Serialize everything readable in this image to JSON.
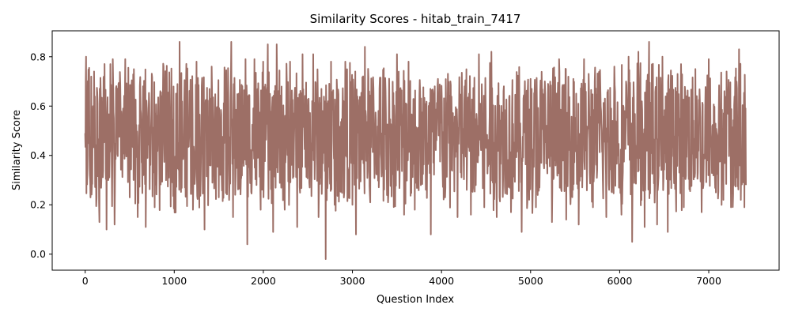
{
  "chart_data": {
    "type": "line",
    "title": "Similarity Scores - hitab_train_7417",
    "xlabel": "Question Index",
    "ylabel": "Similarity Score",
    "xlim": [
      -370,
      7790
    ],
    "ylim": [
      -0.065,
      0.905
    ],
    "xticks": [
      0,
      1000,
      2000,
      3000,
      4000,
      5000,
      6000,
      7000
    ],
    "yticks": [
      0.0,
      0.2,
      0.4,
      0.6,
      0.8
    ],
    "xtick_labels": [
      "0",
      "1000",
      "2000",
      "3000",
      "4000",
      "5000",
      "6000",
      "7000"
    ],
    "ytick_labels": [
      "0.0",
      "0.2",
      "0.4",
      "0.6",
      "0.8"
    ],
    "grid": false,
    "legend": "none",
    "line_color": "#8c564b",
    "n_points": 7418,
    "summary_points": [
      {
        "x": 0,
        "y": 0.49
      },
      {
        "x": 10,
        "y": 0.8
      },
      {
        "x": 60,
        "y": 0.23
      },
      {
        "x": 100,
        "y": 0.74
      },
      {
        "x": 160,
        "y": 0.13
      },
      {
        "x": 210,
        "y": 0.72
      },
      {
        "x": 240,
        "y": 0.1
      },
      {
        "x": 310,
        "y": 0.79
      },
      {
        "x": 330,
        "y": 0.12
      },
      {
        "x": 450,
        "y": 0.79
      },
      {
        "x": 500,
        "y": 0.23
      },
      {
        "x": 590,
        "y": 0.15
      },
      {
        "x": 650,
        "y": 0.68
      },
      {
        "x": 680,
        "y": 0.11
      },
      {
        "x": 780,
        "y": 0.19
      },
      {
        "x": 880,
        "y": 0.76
      },
      {
        "x": 1000,
        "y": 0.3
      },
      {
        "x": 1060,
        "y": 0.86
      },
      {
        "x": 1120,
        "y": 0.27
      },
      {
        "x": 1210,
        "y": 0.18
      },
      {
        "x": 1250,
        "y": 0.78
      },
      {
        "x": 1340,
        "y": 0.1
      },
      {
        "x": 1420,
        "y": 0.76
      },
      {
        "x": 1500,
        "y": 0.23
      },
      {
        "x": 1640,
        "y": 0.86
      },
      {
        "x": 1660,
        "y": 0.15
      },
      {
        "x": 1800,
        "y": 0.79
      },
      {
        "x": 1820,
        "y": 0.04
      },
      {
        "x": 1900,
        "y": 0.79
      },
      {
        "x": 1970,
        "y": 0.18
      },
      {
        "x": 2050,
        "y": 0.85
      },
      {
        "x": 2110,
        "y": 0.09
      },
      {
        "x": 2150,
        "y": 0.85
      },
      {
        "x": 2240,
        "y": 0.18
      },
      {
        "x": 2300,
        "y": 0.78
      },
      {
        "x": 2380,
        "y": 0.11
      },
      {
        "x": 2440,
        "y": 0.81
      },
      {
        "x": 2520,
        "y": 0.27
      },
      {
        "x": 2560,
        "y": 0.81
      },
      {
        "x": 2620,
        "y": 0.15
      },
      {
        "x": 2700,
        "y": -0.02
      },
      {
        "x": 2760,
        "y": 0.78
      },
      {
        "x": 2800,
        "y": 0.2
      },
      {
        "x": 2920,
        "y": 0.78
      },
      {
        "x": 3000,
        "y": 0.2
      },
      {
        "x": 3040,
        "y": 0.08
      },
      {
        "x": 3140,
        "y": 0.84
      },
      {
        "x": 3200,
        "y": 0.21
      },
      {
        "x": 3400,
        "y": 0.21
      },
      {
        "x": 3500,
        "y": 0.81
      },
      {
        "x": 3580,
        "y": 0.16
      },
      {
        "x": 3630,
        "y": 0.78
      },
      {
        "x": 3700,
        "y": 0.18
      },
      {
        "x": 3760,
        "y": 0.66
      },
      {
        "x": 3880,
        "y": 0.08
      },
      {
        "x": 3960,
        "y": 0.71
      },
      {
        "x": 4040,
        "y": 0.23
      },
      {
        "x": 4100,
        "y": 0.7
      },
      {
        "x": 4180,
        "y": 0.15
      },
      {
        "x": 4260,
        "y": 0.68
      },
      {
        "x": 4330,
        "y": 0.16
      },
      {
        "x": 4420,
        "y": 0.81
      },
      {
        "x": 4480,
        "y": 0.19
      },
      {
        "x": 4560,
        "y": 0.82
      },
      {
        "x": 4620,
        "y": 0.15
      },
      {
        "x": 4700,
        "y": 0.68
      },
      {
        "x": 4780,
        "y": 0.17
      },
      {
        "x": 4860,
        "y": 0.71
      },
      {
        "x": 4900,
        "y": 0.09
      },
      {
        "x": 5000,
        "y": 0.71
      },
      {
        "x": 5060,
        "y": 0.19
      },
      {
        "x": 5160,
        "y": 0.7
      },
      {
        "x": 5240,
        "y": 0.13
      },
      {
        "x": 5320,
        "y": 0.79
      },
      {
        "x": 5400,
        "y": 0.14
      },
      {
        "x": 5480,
        "y": 0.71
      },
      {
        "x": 5540,
        "y": 0.12
      },
      {
        "x": 5600,
        "y": 0.79
      },
      {
        "x": 5700,
        "y": 0.19
      },
      {
        "x": 5760,
        "y": 0.71
      },
      {
        "x": 5850,
        "y": 0.15
      },
      {
        "x": 5940,
        "y": 0.76
      },
      {
        "x": 6020,
        "y": 0.16
      },
      {
        "x": 6100,
        "y": 0.8
      },
      {
        "x": 6140,
        "y": 0.05
      },
      {
        "x": 6210,
        "y": 0.82
      },
      {
        "x": 6280,
        "y": 0.11
      },
      {
        "x": 6330,
        "y": 0.86
      },
      {
        "x": 6420,
        "y": 0.12
      },
      {
        "x": 6480,
        "y": 0.8
      },
      {
        "x": 6540,
        "y": 0.09
      },
      {
        "x": 6650,
        "y": 0.73
      },
      {
        "x": 6720,
        "y": 0.19
      },
      {
        "x": 6850,
        "y": 0.75
      },
      {
        "x": 6920,
        "y": 0.17
      },
      {
        "x": 7000,
        "y": 0.79
      },
      {
        "x": 7080,
        "y": 0.25
      },
      {
        "x": 7200,
        "y": 0.74
      },
      {
        "x": 7250,
        "y": 0.19
      },
      {
        "x": 7340,
        "y": 0.83
      },
      {
        "x": 7400,
        "y": 0.19
      },
      {
        "x": 7417,
        "y": 0.28
      }
    ]
  }
}
